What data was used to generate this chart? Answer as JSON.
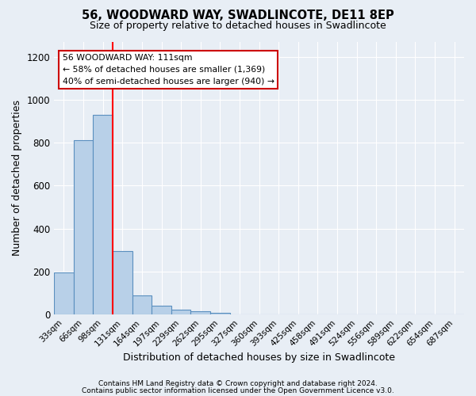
{
  "title1": "56, WOODWARD WAY, SWADLINCOTE, DE11 8EP",
  "title2": "Size of property relative to detached houses in Swadlincote",
  "xlabel": "Distribution of detached houses by size in Swadlincote",
  "ylabel": "Number of detached properties",
  "bar_labels": [
    "33sqm",
    "66sqm",
    "98sqm",
    "131sqm",
    "164sqm",
    "197sqm",
    "229sqm",
    "262sqm",
    "295sqm",
    "327sqm",
    "360sqm",
    "393sqm",
    "425sqm",
    "458sqm",
    "491sqm",
    "524sqm",
    "556sqm",
    "589sqm",
    "622sqm",
    "654sqm",
    "687sqm"
  ],
  "bar_values": [
    195,
    810,
    930,
    295,
    88,
    40,
    22,
    15,
    10,
    0,
    0,
    0,
    0,
    0,
    0,
    0,
    0,
    0,
    0,
    0,
    0
  ],
  "bar_color": "#b8d0e8",
  "bar_edge_color": "#5a8fbf",
  "bg_color": "#e8eef5",
  "grid_color": "#ffffff",
  "vline_color": "red",
  "annotation_line1": "56 WOODWARD WAY: 111sqm",
  "annotation_line2": "← 58% of detached houses are smaller (1,369)",
  "annotation_line3": "40% of semi-detached houses are larger (940) →",
  "annotation_box_color": "white",
  "annotation_box_edge": "#cc0000",
  "ylim": [
    0,
    1270
  ],
  "yticks": [
    0,
    200,
    400,
    600,
    800,
    1000,
    1200
  ],
  "footnote1": "Contains HM Land Registry data © Crown copyright and database right 2024.",
  "footnote2": "Contains public sector information licensed under the Open Government Licence v3.0."
}
